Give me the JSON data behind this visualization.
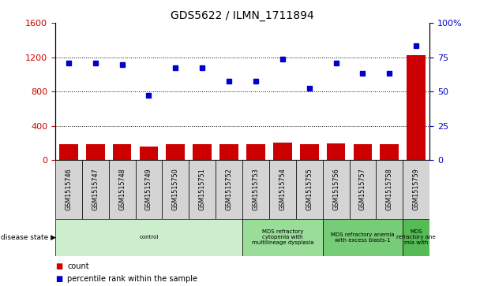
{
  "title": "GDS5622 / ILMN_1711894",
  "samples": [
    "GSM1515746",
    "GSM1515747",
    "GSM1515748",
    "GSM1515749",
    "GSM1515750",
    "GSM1515751",
    "GSM1515752",
    "GSM1515753",
    "GSM1515754",
    "GSM1515755",
    "GSM1515756",
    "GSM1515757",
    "GSM1515758",
    "GSM1515759"
  ],
  "counts": [
    190,
    190,
    190,
    160,
    185,
    185,
    185,
    185,
    205,
    185,
    200,
    185,
    185,
    1220
  ],
  "percentile_ranks": [
    1130,
    1130,
    1110,
    760,
    1080,
    1080,
    920,
    920,
    1175,
    840,
    1130,
    1010,
    1010,
    1330
  ],
  "bar_color": "#cc0000",
  "dot_color": "#0000cc",
  "ylim_left": [
    0,
    1600
  ],
  "yticks_left": [
    0,
    400,
    800,
    1200,
    1600
  ],
  "yticks_right_vals": [
    0,
    400,
    800,
    1200,
    1600
  ],
  "yticks_right_labels": [
    "0",
    "25",
    "50",
    "75",
    "100%"
  ],
  "disease_groups": [
    {
      "label": "control",
      "start": 0,
      "end": 7,
      "color": "#cceecc"
    },
    {
      "label": "MDS refractory\ncytopenia with\nmultilineage dysplasia",
      "start": 7,
      "end": 10,
      "color": "#99dd99"
    },
    {
      "label": "MDS refractory anemia\nwith excess blasts-1",
      "start": 10,
      "end": 13,
      "color": "#77cc77"
    },
    {
      "label": "MDS\nrefractory ane\nmia with",
      "start": 13,
      "end": 14,
      "color": "#55bb55"
    }
  ],
  "disease_state_label": "disease state",
  "legend_count_label": "count",
  "legend_percentile_label": "percentile rank within the sample",
  "tick_label_color_left": "#cc0000",
  "tick_label_color_right": "#0000cc",
  "sample_box_color": "#d4d4d4",
  "n_samples": 14
}
